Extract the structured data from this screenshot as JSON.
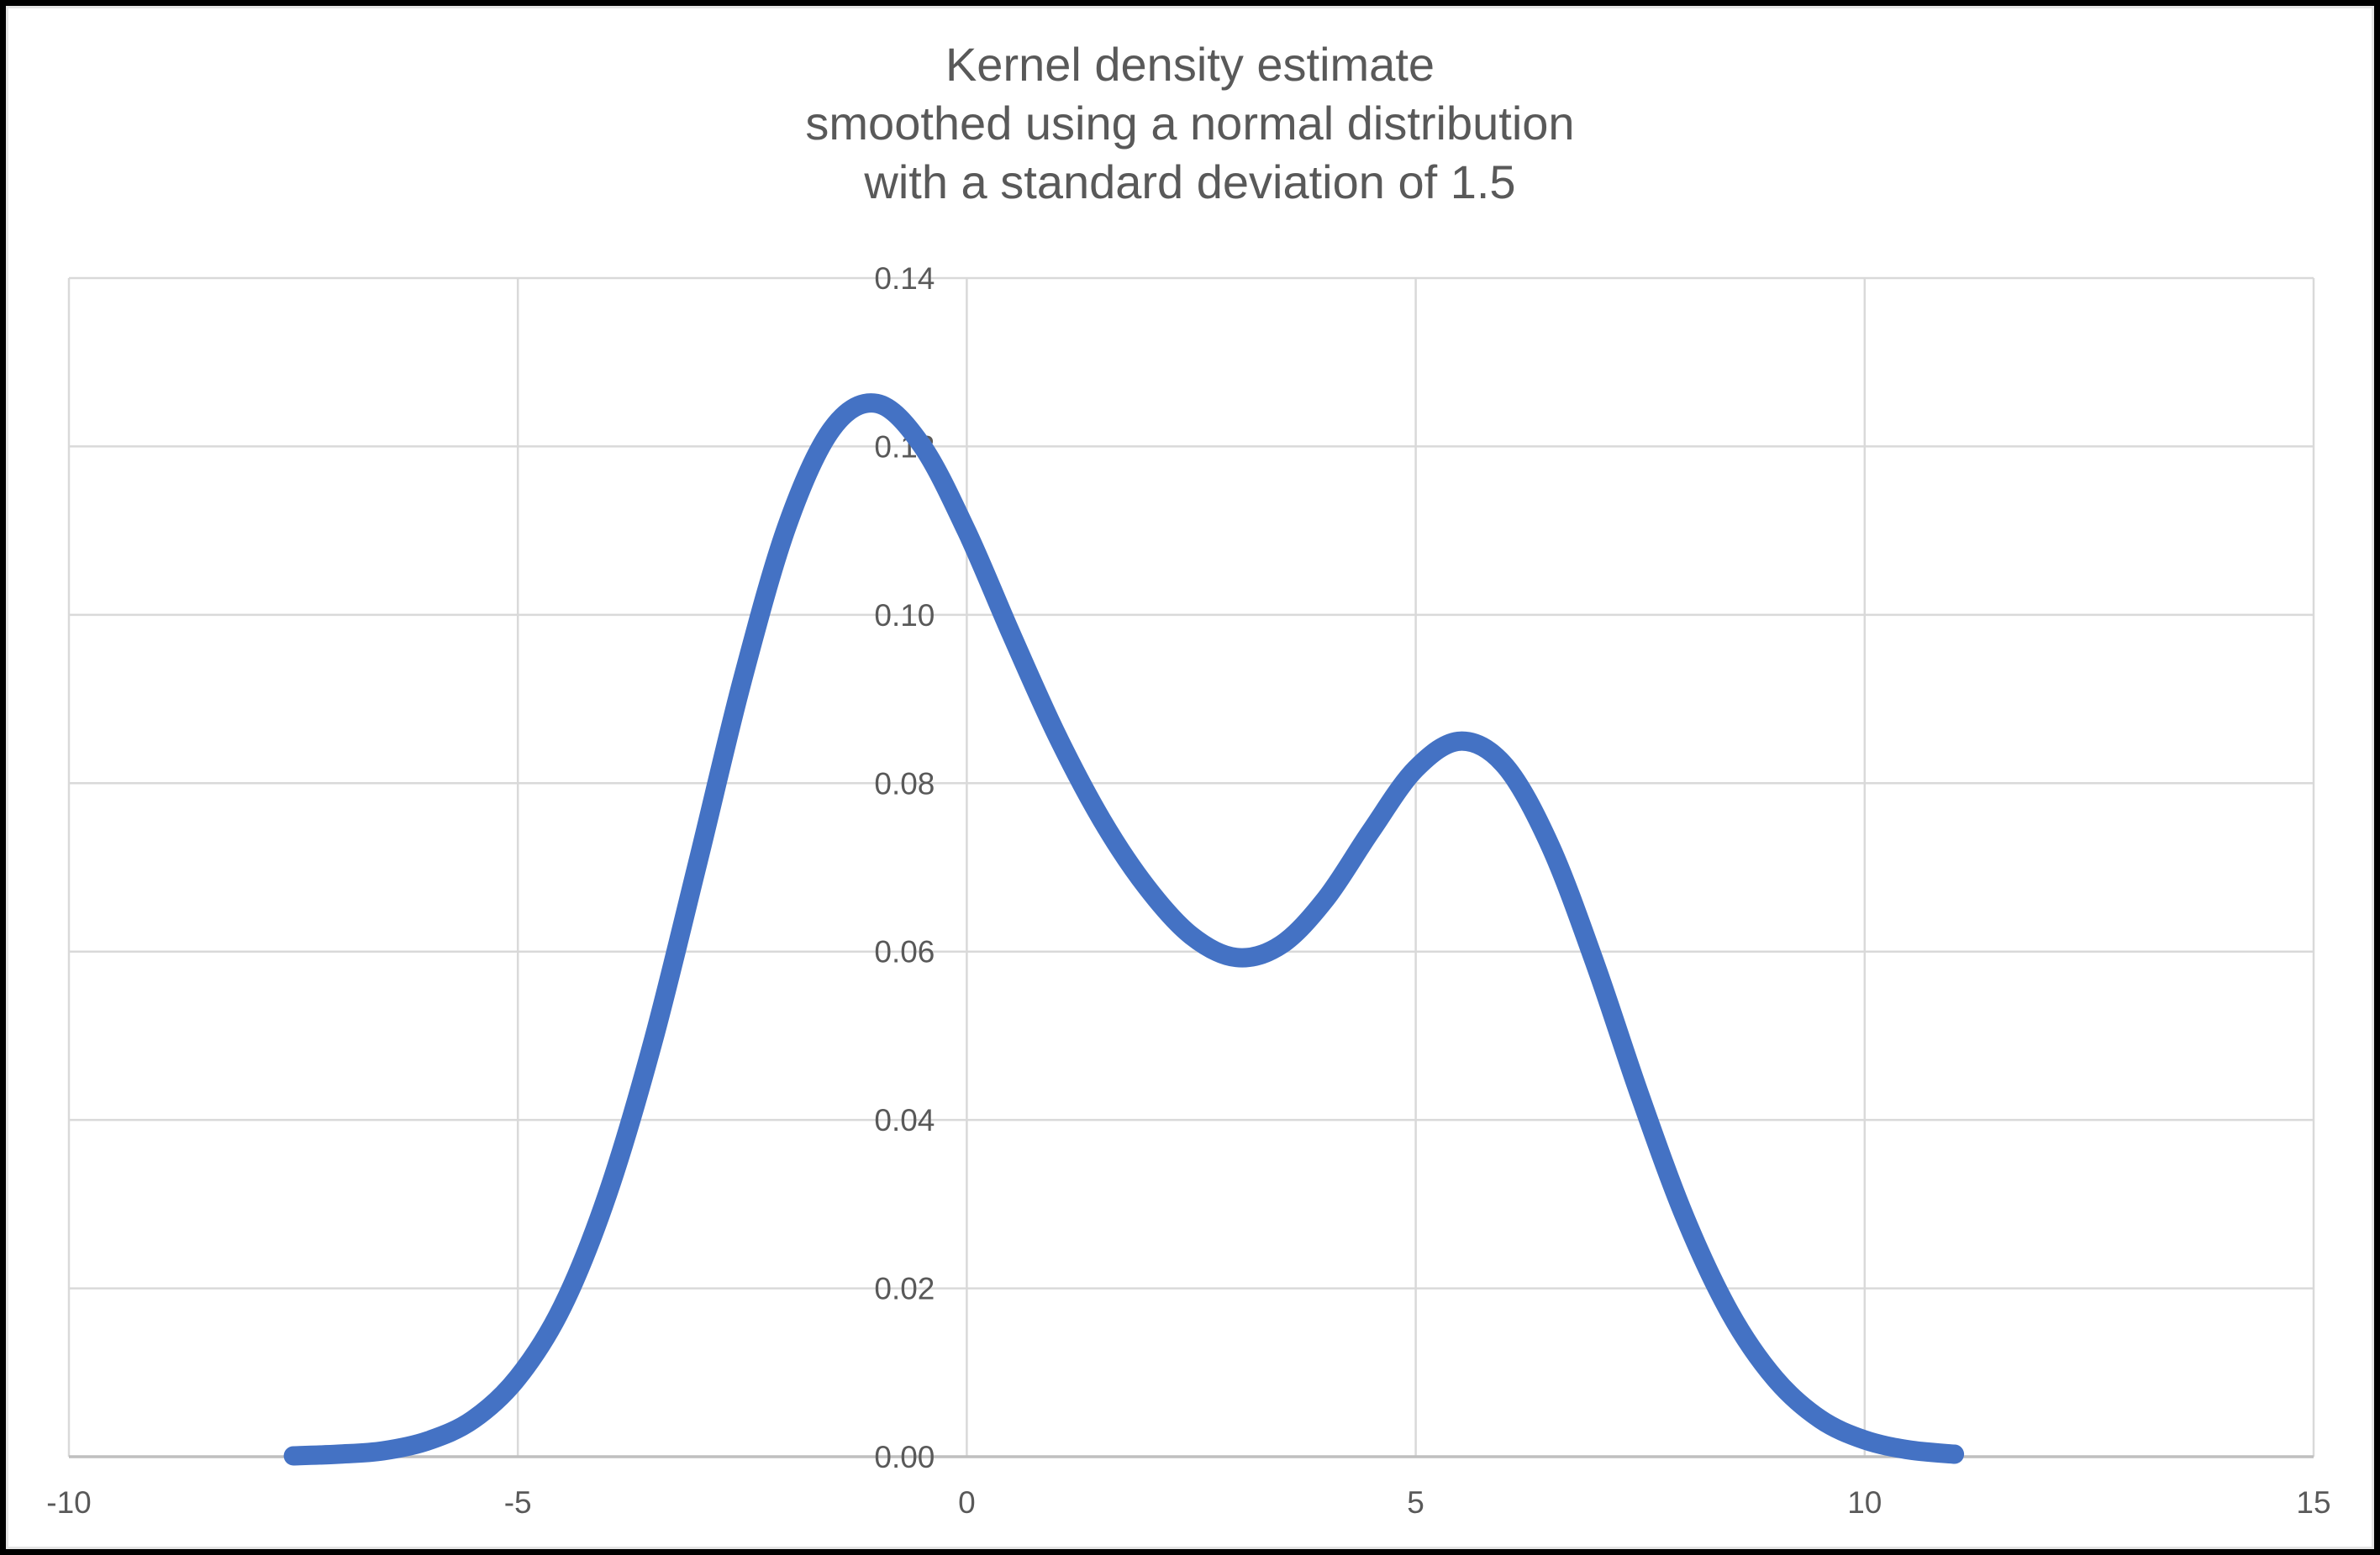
{
  "frame": {
    "background": "#ffffff",
    "border_color": "#000000"
  },
  "chart_data": {
    "type": "line",
    "title_lines": [
      "Kernel density estimate",
      "smoothed using a normal distribution",
      "with a standard deviation of 1.5"
    ],
    "title_color": "#595959",
    "xlim": [
      -10,
      15
    ],
    "ylim": [
      0,
      0.14
    ],
    "x_ticks": [
      -10,
      -5,
      0,
      5,
      10,
      15
    ],
    "x_tick_labels": [
      "-10",
      "-5",
      "0",
      "5",
      "10",
      "15"
    ],
    "y_ticks": [
      0,
      0.02,
      0.04,
      0.06,
      0.08,
      0.1,
      0.12,
      0.14
    ],
    "y_tick_labels": [
      "0.00",
      "0.02",
      "0.04",
      "0.06",
      "0.08",
      "0.10",
      "0.12",
      "0.14"
    ],
    "grid": true,
    "vertical_gridlines_at": [
      -5,
      0,
      5,
      10
    ],
    "legend": "none",
    "axis_label_color": "#595959",
    "gridline_color": "#D9D9D9",
    "axis_line_color": "#BFBFBF",
    "series": [
      {
        "name": "kernel density estimate",
        "color": "#4472C4",
        "points": [
          [
            -7.5,
            0.0001
          ],
          [
            -7.0,
            0.0003
          ],
          [
            -6.5,
            0.0007
          ],
          [
            -6.0,
            0.0019
          ],
          [
            -5.5,
            0.0044
          ],
          [
            -5.0,
            0.0094
          ],
          [
            -4.5,
            0.0179
          ],
          [
            -4.0,
            0.0312
          ],
          [
            -3.5,
            0.0491
          ],
          [
            -3.0,
            0.0704
          ],
          [
            -2.5,
            0.0922
          ],
          [
            -2.0,
            0.1106
          ],
          [
            -1.5,
            0.1221
          ],
          [
            -1.0,
            0.1251
          ],
          [
            -0.5,
            0.1201
          ],
          [
            0.0,
            0.1099
          ],
          [
            0.5,
            0.0976
          ],
          [
            1.0,
            0.0858
          ],
          [
            1.5,
            0.0757
          ],
          [
            2.0,
            0.0677
          ],
          [
            2.5,
            0.0619
          ],
          [
            3.0,
            0.0593
          ],
          [
            3.5,
            0.0608
          ],
          [
            4.0,
            0.0663
          ],
          [
            4.5,
            0.0743
          ],
          [
            5.0,
            0.0817
          ],
          [
            5.5,
            0.085
          ],
          [
            6.0,
            0.082
          ],
          [
            6.5,
            0.0725
          ],
          [
            7.0,
            0.0585
          ],
          [
            7.5,
            0.0428
          ],
          [
            8.0,
            0.0284
          ],
          [
            8.5,
            0.0171
          ],
          [
            9.0,
            0.0093
          ],
          [
            9.5,
            0.0045
          ],
          [
            10.0,
            0.002
          ],
          [
            10.5,
            0.0008
          ],
          [
            11.0,
            0.0003
          ]
        ]
      }
    ]
  }
}
